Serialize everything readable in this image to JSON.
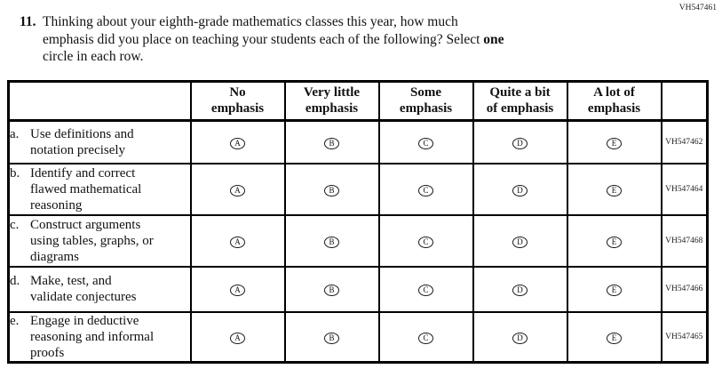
{
  "page": {
    "top_right_code": "VH547461"
  },
  "question": {
    "number": "11.",
    "line1": "Thinking about your eighth-grade mathematics classes this year, how much",
    "line2_pre": "emphasis did you place on teaching your students each of the following? Select ",
    "line2_bold": "one",
    "line3": "circle in each row."
  },
  "table": {
    "columns": [
      {
        "lines": [
          "No",
          "emphasis"
        ]
      },
      {
        "lines": [
          "Very little",
          "emphasis"
        ]
      },
      {
        "lines": [
          "Some",
          "emphasis"
        ]
      },
      {
        "lines": [
          "Quite a bit",
          "of emphasis"
        ]
      },
      {
        "lines": [
          "A lot of",
          "emphasis"
        ]
      }
    ],
    "options": [
      "A",
      "B",
      "C",
      "D",
      "E"
    ],
    "rows": [
      {
        "letter": "a.",
        "label_lines": [
          "Use definitions and",
          "notation precisely"
        ],
        "code": "VH547462"
      },
      {
        "letter": "b.",
        "label_lines": [
          "Identify and correct",
          "flawed mathematical",
          "reasoning"
        ],
        "code": "VH547464"
      },
      {
        "letter": "c.",
        "label_lines": [
          "Construct arguments",
          "using tables, graphs, or",
          "diagrams"
        ],
        "code": "VH547468"
      },
      {
        "letter": "d.",
        "label_lines": [
          "Make, test, and",
          "validate conjectures"
        ],
        "code": "VH547466"
      },
      {
        "letter": "e.",
        "label_lines": [
          "Engage in deductive",
          "reasoning and informal",
          "proofs"
        ],
        "code": "VH547465"
      }
    ]
  },
  "colors": {
    "background": "#ffffff",
    "text": "#111111",
    "border": "#000000"
  }
}
